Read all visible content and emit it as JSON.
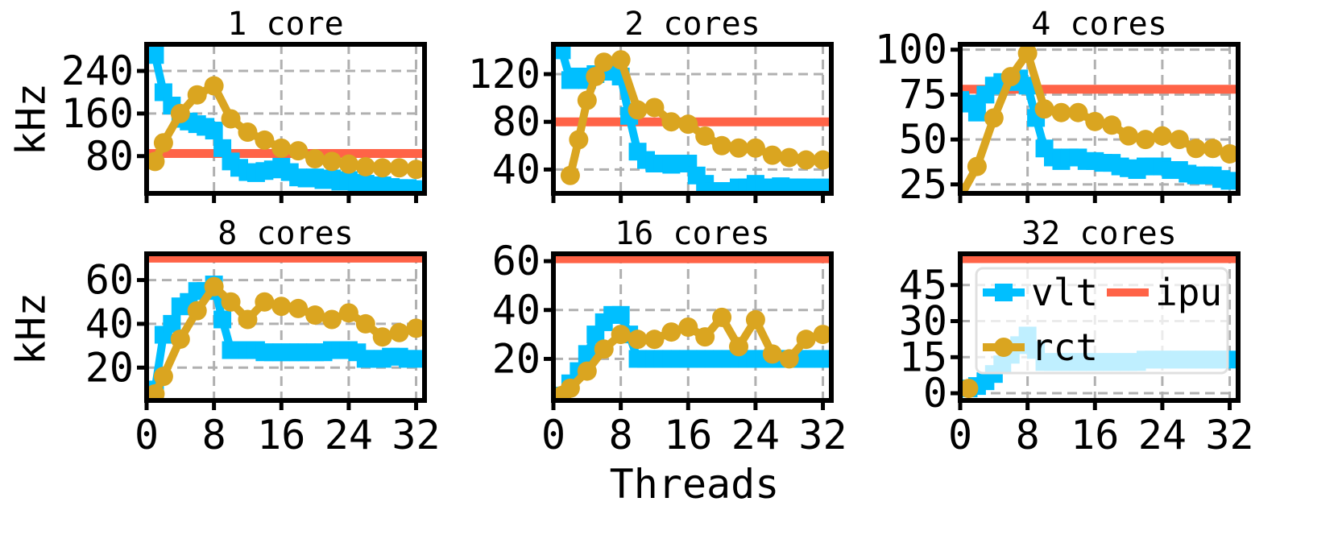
{
  "figure": {
    "xlabel": "Threads",
    "ylabel": "kHz"
  },
  "colors": {
    "vlt": "#00bfff",
    "rct": "#daa520",
    "ipu": "#ff6347"
  },
  "legend": {
    "placement": "upper-left",
    "panel": 5,
    "entries": [
      "vlt",
      "ipu",
      "rct"
    ]
  },
  "chart_data": [
    {
      "type": "line",
      "title": "1 core",
      "xlabel": "",
      "ylabel": "kHz",
      "xlim": [
        0,
        33
      ],
      "ylim": [
        10,
        290
      ],
      "yticks": [
        80,
        160,
        240
      ],
      "xticks": [
        0,
        8,
        16,
        24,
        32
      ],
      "xticklabels": false,
      "series": [
        {
          "name": "vlt",
          "marker": "square",
          "x": [
            1,
            2,
            3,
            4,
            5,
            6,
            7,
            8,
            9,
            10,
            11,
            12,
            13,
            14,
            15,
            16,
            17,
            18,
            19,
            20,
            21,
            22,
            23,
            24,
            25,
            26,
            27,
            28,
            29,
            30,
            31,
            32
          ],
          "y": [
            270,
            200,
            175,
            150,
            145,
            140,
            135,
            128,
            95,
            70,
            58,
            50,
            48,
            52,
            55,
            60,
            50,
            40,
            38,
            40,
            35,
            38,
            32,
            35,
            30,
            28,
            25,
            25,
            22,
            20,
            20,
            18
          ]
        },
        {
          "name": "rct",
          "marker": "circle",
          "x": [
            1,
            2,
            4,
            6,
            8,
            10,
            12,
            14,
            16,
            18,
            20,
            22,
            24,
            26,
            28,
            30,
            32
          ],
          "y": [
            70,
            105,
            160,
            195,
            212,
            150,
            125,
            110,
            95,
            90,
            75,
            70,
            65,
            60,
            58,
            58,
            55
          ]
        },
        {
          "name": "ipu",
          "marker": "none",
          "x": [
            0,
            33
          ],
          "y": [
            85,
            85
          ]
        }
      ]
    },
    {
      "type": "line",
      "title": "2 cores",
      "xlabel": "",
      "ylabel": "",
      "xlim": [
        0,
        33
      ],
      "ylim": [
        20,
        145
      ],
      "yticks": [
        40,
        80,
        120
      ],
      "xticks": [
        0,
        8,
        16,
        24,
        32
      ],
      "xticklabels": false,
      "series": [
        {
          "name": "vlt",
          "marker": "square",
          "x": [
            1,
            2,
            3,
            4,
            5,
            6,
            7,
            8,
            9,
            10,
            11,
            12,
            13,
            14,
            15,
            16,
            17,
            18,
            19,
            20,
            21,
            22,
            23,
            24,
            25,
            26,
            27,
            28,
            29,
            30,
            31,
            32
          ],
          "y": [
            140,
            115,
            118,
            115,
            120,
            122,
            123,
            118,
            85,
            55,
            48,
            45,
            45,
            44,
            45,
            45,
            35,
            28,
            22,
            20,
            22,
            25,
            25,
            28,
            25,
            25,
            26,
            25,
            25,
            25,
            24,
            25
          ]
        },
        {
          "name": "rct",
          "marker": "circle",
          "x": [
            2,
            3,
            4,
            5,
            6,
            8,
            10,
            12,
            14,
            16,
            18,
            20,
            22,
            24,
            26,
            28,
            30,
            32
          ],
          "y": [
            35,
            65,
            98,
            118,
            130,
            132,
            90,
            92,
            80,
            78,
            68,
            60,
            58,
            58,
            52,
            50,
            48,
            48
          ]
        },
        {
          "name": "ipu",
          "marker": "none",
          "x": [
            0,
            33
          ],
          "y": [
            80,
            80
          ]
        }
      ]
    },
    {
      "type": "line",
      "title": "4 cores",
      "xlabel": "",
      "ylabel": "",
      "xlim": [
        0,
        33
      ],
      "ylim": [
        20,
        103
      ],
      "yticks": [
        25,
        50,
        75,
        100
      ],
      "xticks": [
        0,
        8,
        16,
        24,
        32
      ],
      "xticklabels": false,
      "series": [
        {
          "name": "vlt",
          "marker": "square",
          "x": [
            0,
            1,
            2,
            3,
            4,
            5,
            6,
            7,
            8,
            9,
            10,
            11,
            12,
            13,
            14,
            15,
            16,
            17,
            18,
            19,
            20,
            21,
            22,
            23,
            24,
            25,
            26,
            27,
            28,
            29,
            30,
            31,
            32
          ],
          "y": [
            72,
            70,
            65,
            75,
            80,
            82,
            82,
            84,
            80,
            62,
            45,
            40,
            38,
            40,
            40,
            38,
            38,
            37,
            37,
            35,
            34,
            33,
            35,
            35,
            35,
            33,
            33,
            31,
            30,
            30,
            30,
            28,
            27
          ]
        },
        {
          "name": "rct",
          "marker": "circle",
          "x": [
            0,
            2,
            4,
            6,
            8,
            10,
            12,
            14,
            16,
            18,
            20,
            22,
            24,
            26,
            28,
            30,
            32
          ],
          "y": [
            18,
            35,
            62,
            85,
            98,
            67,
            65,
            65,
            60,
            58,
            52,
            50,
            52,
            50,
            45,
            45,
            42
          ]
        },
        {
          "name": "ipu",
          "marker": "none",
          "x": [
            0,
            33
          ],
          "y": [
            78,
            78
          ]
        }
      ]
    },
    {
      "type": "line",
      "title": "8 cores",
      "xlabel": "",
      "ylabel": "kHz",
      "xlim": [
        0,
        33
      ],
      "ylim": [
        5,
        72
      ],
      "yticks": [
        20,
        40,
        60
      ],
      "xticks": [
        0,
        8,
        16,
        24,
        32
      ],
      "xticklabels": true,
      "series": [
        {
          "name": "vlt",
          "marker": "square",
          "x": [
            1,
            2,
            3,
            4,
            5,
            6,
            7,
            8,
            9,
            10,
            11,
            12,
            13,
            14,
            15,
            16,
            17,
            18,
            19,
            20,
            21,
            22,
            23,
            24,
            25,
            26,
            27,
            28,
            29,
            30,
            31,
            32
          ],
          "y": [
            10,
            35,
            40,
            48,
            50,
            55,
            55,
            58,
            42,
            28,
            28,
            28,
            28,
            27,
            27,
            27,
            27,
            27,
            27,
            27,
            27,
            28,
            28,
            28,
            27,
            24,
            24,
            24,
            25,
            25,
            24,
            24
          ]
        },
        {
          "name": "rct",
          "marker": "circle",
          "x": [
            1,
            2,
            4,
            6,
            8,
            10,
            12,
            14,
            16,
            18,
            20,
            22,
            24,
            26,
            28,
            30,
            32
          ],
          "y": [
            8,
            16,
            33,
            46,
            57,
            50,
            42,
            50,
            48,
            47,
            44,
            42,
            45,
            40,
            34,
            36,
            38
          ]
        },
        {
          "name": "ipu",
          "marker": "none",
          "x": [
            0,
            33
          ],
          "y": [
            70,
            70
          ]
        }
      ]
    },
    {
      "type": "line",
      "title": "16 cores",
      "xlabel": "Threads",
      "ylabel": "",
      "xlim": [
        0,
        33
      ],
      "ylim": [
        3,
        63
      ],
      "yticks": [
        20,
        40,
        60
      ],
      "xticks": [
        0,
        8,
        16,
        24,
        32
      ],
      "xticklabels": true,
      "series": [
        {
          "name": "vlt",
          "marker": "square",
          "x": [
            1,
            2,
            3,
            4,
            5,
            6,
            7,
            8,
            9,
            10,
            11,
            12,
            13,
            14,
            15,
            16,
            17,
            18,
            19,
            20,
            21,
            22,
            23,
            24,
            25,
            26,
            27,
            28,
            29,
            30,
            31,
            32
          ],
          "y": [
            5,
            10,
            15,
            22,
            30,
            35,
            38,
            38,
            30,
            20,
            20,
            20,
            20,
            20,
            20,
            20,
            20,
            20,
            20,
            20,
            20,
            20,
            20,
            20,
            20,
            20,
            20,
            20,
            20,
            20,
            20,
            20
          ]
        },
        {
          "name": "rct",
          "marker": "circle",
          "x": [
            1,
            2,
            4,
            6,
            8,
            10,
            12,
            14,
            16,
            18,
            20,
            22,
            24,
            26,
            28,
            30,
            32
          ],
          "y": [
            5,
            8,
            15,
            24,
            30,
            28,
            28,
            31,
            33,
            29,
            37,
            25,
            36,
            22,
            20,
            28,
            30
          ]
        },
        {
          "name": "ipu",
          "marker": "none",
          "x": [
            0,
            33
          ],
          "y": [
            61,
            61
          ]
        }
      ]
    },
    {
      "type": "line",
      "title": "32 cores",
      "xlabel": "",
      "ylabel": "",
      "xlim": [
        0,
        33
      ],
      "ylim": [
        -3,
        58
      ],
      "yticks": [
        0,
        15,
        30,
        45
      ],
      "xticks": [
        0,
        8,
        16,
        24,
        32
      ],
      "xticklabels": true,
      "series": [
        {
          "name": "vlt",
          "marker": "square",
          "x": [
            1,
            2,
            3,
            4,
            5,
            6,
            7,
            8,
            9,
            10,
            11,
            12,
            13,
            14,
            15,
            16,
            17,
            18,
            19,
            20,
            21,
            22,
            23,
            24,
            25,
            26,
            27,
            28,
            29,
            30,
            31,
            32
          ],
          "y": [
            2,
            3,
            5,
            8,
            12,
            16,
            20,
            24,
            18,
            13,
            13,
            13,
            13,
            13,
            13,
            13,
            13,
            13,
            13,
            13,
            13,
            14,
            14,
            14,
            14,
            14,
            14,
            14,
            14,
            14,
            14,
            14
          ]
        },
        {
          "name": "rct",
          "marker": "circle",
          "x": [
            1
          ],
          "y": [
            2
          ]
        },
        {
          "name": "ipu",
          "marker": "none",
          "x": [
            0,
            33
          ],
          "y": [
            56,
            56
          ]
        }
      ]
    }
  ]
}
